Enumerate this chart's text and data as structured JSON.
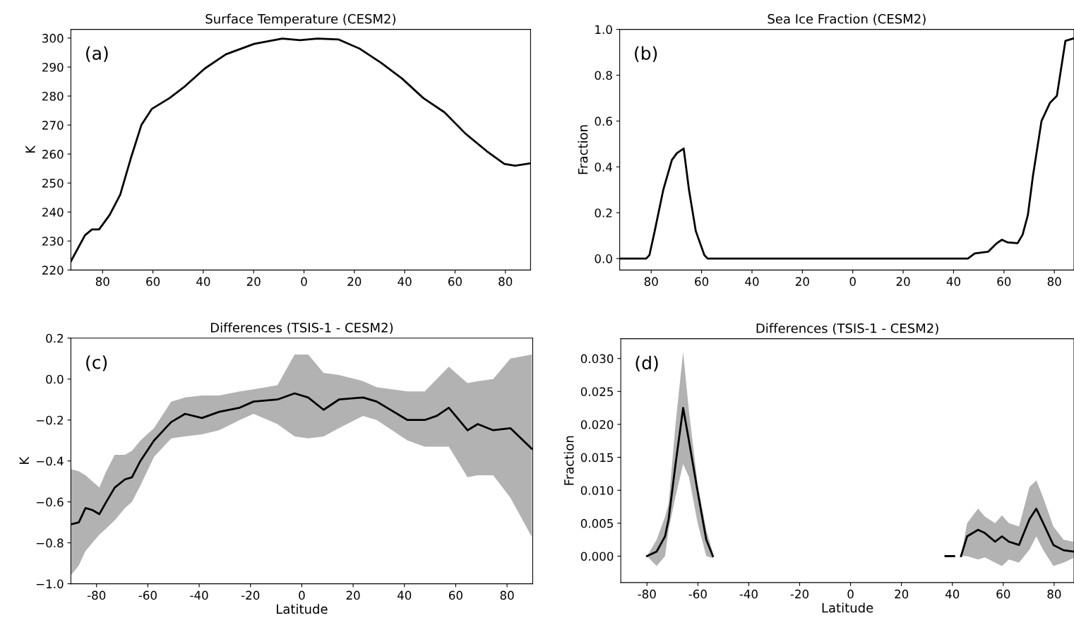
{
  "chart_data": [
    {
      "type": "line",
      "title": "Surface Temperature (CESM2)",
      "ylabel": "K",
      "annotations": [
        "(a)"
      ],
      "x": [
        -92.6,
        -87,
        -84.2,
        -81.4,
        -77.2,
        -73,
        -68.8,
        -64.6,
        -60.4,
        -53.4,
        -47.8,
        -39.4,
        -31,
        -19.8,
        -8.6,
        -1.6,
        5.4,
        13.8,
        22.2,
        30.6,
        39,
        47.4,
        55.8,
        64.2,
        72.6,
        79.6,
        83.9,
        90
      ],
      "series": [
        {
          "color": "#000000",
          "values": [
            223,
            232,
            234,
            234,
            239,
            246,
            258.5,
            270,
            275.6,
            279.3,
            283,
            289.5,
            294.4,
            298,
            299.8,
            299.3,
            299.8,
            299.5,
            296.3,
            291.5,
            286,
            279.3,
            274.4,
            267,
            261,
            256.6,
            256,
            256.8
          ]
        }
      ],
      "xlim": [
        -92.6,
        90
      ],
      "ylim": [
        220,
        303
      ],
      "xticks": [
        {
          "value": -80,
          "label": "80"
        },
        {
          "value": -60,
          "label": "60"
        },
        {
          "value": -40,
          "label": "40"
        },
        {
          "value": -20,
          "label": "20"
        },
        0,
        20,
        40,
        60,
        80
      ],
      "yticks": [
        220,
        230,
        240,
        250,
        260,
        270,
        280,
        290,
        300
      ]
    },
    {
      "type": "line",
      "title": "Sea Ice Fraction (CESM2)",
      "ylabel": "Fraction",
      "annotations": [
        "(b)"
      ],
      "x": [
        -92.5,
        -82,
        -80.7,
        -78.6,
        -75.2,
        -71.8,
        -69.8,
        -67.1,
        -65,
        -62.3,
        -58.9,
        -57.6,
        45.7,
        48.4,
        53.8,
        57.2,
        59.2,
        61.3,
        65.4,
        67.4,
        69.5,
        71.5,
        74.9,
        78.3,
        81,
        84.4,
        87.5
      ],
      "series": [
        {
          "color": "#000000",
          "values": [
            0,
            0,
            0.015,
            0.12,
            0.3,
            0.43,
            0.46,
            0.48,
            0.3,
            0.12,
            0.015,
            0,
            0,
            0.022,
            0.03,
            0.067,
            0.082,
            0.071,
            0.067,
            0.104,
            0.19,
            0.36,
            0.6,
            0.68,
            0.71,
            0.95,
            0.96
          ]
        }
      ],
      "xlim": [
        -92.5,
        87.8
      ],
      "ylim": [
        -0.05,
        1.0
      ],
      "xticks": [
        {
          "value": -80,
          "label": "80"
        },
        {
          "value": -60,
          "label": "60"
        },
        {
          "value": -40,
          "label": "40"
        },
        {
          "value": -20,
          "label": "20"
        },
        0,
        20,
        40,
        60,
        80
      ],
      "yticks": [
        {
          "value": 0,
          "label": "0.0"
        },
        {
          "value": 0.2,
          "label": "0.2"
        },
        {
          "value": 0.4,
          "label": "0.4"
        },
        {
          "value": 0.6,
          "label": "0.6"
        },
        {
          "value": 0.8,
          "label": "0.8"
        },
        {
          "value": 1,
          "label": "1.0"
        }
      ]
    },
    {
      "type": "line",
      "title": "Differences (TSIS-1 - CESM2)",
      "xlabel": "Latitude",
      "ylabel": "K",
      "annotations": [
        "(c)"
      ],
      "x": [
        -90,
        -86.9,
        -84.3,
        -81.6,
        -78.9,
        -76.2,
        -72.9,
        -68.9,
        -66.2,
        -62.9,
        -57.6,
        -50.9,
        -45.5,
        -38.9,
        -32.2,
        -24.2,
        -18.8,
        -9.5,
        -2.8,
        2.5,
        8.5,
        14.5,
        23.9,
        29.2,
        41.2,
        47.9,
        52.6,
        57.3,
        64.6,
        68.6,
        74.6,
        81.3,
        89.6
      ],
      "series": [
        {
          "color": "#000000",
          "values": [
            -0.71,
            -0.7,
            -0.63,
            -0.64,
            -0.66,
            -0.6,
            -0.53,
            -0.49,
            -0.48,
            -0.4,
            -0.3,
            -0.21,
            -0.17,
            -0.19,
            -0.16,
            -0.14,
            -0.11,
            -0.1,
            -0.07,
            -0.09,
            -0.15,
            -0.1,
            -0.09,
            -0.11,
            -0.2,
            -0.2,
            -0.18,
            -0.14,
            -0.25,
            -0.22,
            -0.25,
            -0.24,
            -0.34
          ],
          "upper": [
            -0.44,
            -0.45,
            -0.47,
            -0.5,
            -0.53,
            -0.45,
            -0.37,
            -0.37,
            -0.35,
            -0.3,
            -0.24,
            -0.11,
            -0.09,
            -0.08,
            -0.08,
            -0.06,
            -0.05,
            -0.03,
            0.12,
            0.12,
            0.03,
            0.02,
            -0.01,
            -0.04,
            -0.06,
            -0.06,
            0.0,
            0.06,
            -0.02,
            -0.01,
            0.0,
            0.1,
            0.12
          ],
          "lower": [
            -0.96,
            -0.91,
            -0.84,
            -0.8,
            -0.76,
            -0.73,
            -0.69,
            -0.63,
            -0.6,
            -0.52,
            -0.38,
            -0.29,
            -0.28,
            -0.27,
            -0.25,
            -0.2,
            -0.17,
            -0.22,
            -0.28,
            -0.29,
            -0.28,
            -0.24,
            -0.18,
            -0.2,
            -0.3,
            -0.33,
            -0.33,
            -0.33,
            -0.48,
            -0.47,
            -0.47,
            -0.58,
            -0.77
          ]
        }
      ],
      "xlim": [
        -90,
        90
      ],
      "ylim": [
        -1.0,
        0.2
      ],
      "xticks": [
        -80,
        -60,
        -40,
        -20,
        0,
        20,
        40,
        60,
        80
      ],
      "yticks": [
        {
          "value": -1,
          "label": "−1.0"
        },
        {
          "value": -0.8,
          "label": "−0.8"
        },
        {
          "value": -0.6,
          "label": "−0.6"
        },
        {
          "value": -0.4,
          "label": "−0.4"
        },
        {
          "value": -0.2,
          "label": "−0.2"
        },
        {
          "value": 0,
          "label": "0.0"
        },
        {
          "value": 0.2,
          "label": "0.2"
        }
      ]
    },
    {
      "type": "line",
      "title": "Differences (TSIS-1 - CESM2)",
      "xlabel": "Latitude",
      "ylabel": "Fraction",
      "annotations": [
        "(d)"
      ],
      "x": [
        -80,
        -76.2,
        -72.9,
        -71.5,
        -68.8,
        -65.8,
        -63.5,
        -60.1,
        -56.7,
        -54.1,
        0,
        37.3,
        40.7,
        42,
        43.4,
        45.8,
        50.1,
        52.8,
        56.8,
        59.5,
        62.2,
        66.2,
        70.3,
        73,
        75.6,
        79.7,
        83.7,
        87.5
      ],
      "series": [
        {
          "color": "#000000",
          "values": [
            0,
            0.0007,
            0.003,
            0.0056,
            0.0139,
            0.0225,
            0.0175,
            0.0098,
            0.0025,
            0,
            null,
            0,
            0,
            null,
            0,
            0.003,
            0.004,
            0.0035,
            0.0022,
            0.003,
            0.0022,
            0.0017,
            0.0056,
            0.0072,
            0.0051,
            0.0017,
            0.0009,
            0.0007
          ],
          "upper": [
            0,
            0.0025,
            0.006,
            0.008,
            0.02,
            0.031,
            0.022,
            0.011,
            0.004,
            0.0005,
            null,
            null,
            null,
            null,
            0,
            0.005,
            0.0072,
            0.006,
            0.005,
            0.0062,
            0.005,
            0.0045,
            0.0105,
            0.0115,
            0.009,
            0.0045,
            0.0025,
            0.0022
          ],
          "lower": [
            0,
            -0.0015,
            0,
            0.004,
            0.009,
            0.014,
            0.012,
            0.005,
            0,
            -0.0003,
            null,
            null,
            null,
            null,
            0,
            0,
            -0.0005,
            -0.0002,
            -0.001,
            -0.0015,
            -0.0005,
            -0.001,
            0.001,
            0.003,
            0.001,
            -0.0015,
            -0.001,
            -0.0003
          ]
        }
      ],
      "xlim": [
        -90.3,
        87.8
      ],
      "ylim": [
        -0.004,
        0.033
      ],
      "xticks": [
        -80,
        -60,
        -40,
        -20,
        0,
        20,
        40,
        60,
        80
      ],
      "yticks": [
        {
          "value": 0,
          "label": "0.000"
        },
        {
          "value": 0.005,
          "label": "0.005"
        },
        {
          "value": 0.01,
          "label": "0.010"
        },
        {
          "value": 0.015,
          "label": "0.015"
        },
        {
          "value": 0.02,
          "label": "0.020"
        },
        {
          "value": 0.025,
          "label": "0.025"
        },
        {
          "value": 0.03,
          "label": "0.030"
        }
      ]
    }
  ]
}
